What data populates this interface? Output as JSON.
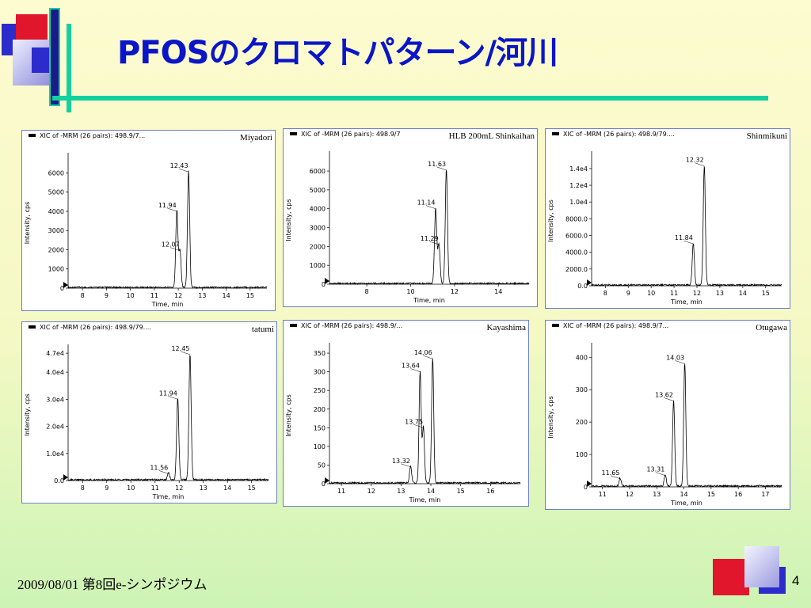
{
  "slide": {
    "title": "PFOSのクロマトパターン/河川",
    "footer": "2009/08/01 第8回e-シンポジウム",
    "page_number": "4",
    "colors": {
      "title": "#0a16c8",
      "accent_rule": "#13d0a0",
      "deco_red": "#e1152b",
      "deco_blue": "#2c2ccc",
      "panel_border": "#6b7fc8"
    }
  },
  "chart_data": [
    {
      "type": "line",
      "header": "XIC of -MRM (26 pairs): 498.9/7...",
      "site": "Miyadori",
      "xlabel": "Time, min",
      "ylabel": "Intensity, cps",
      "xlim": [
        7.4,
        15.7
      ],
      "ylim": [
        0,
        6800
      ],
      "xticks": [
        8,
        9,
        10,
        11,
        12,
        13,
        14,
        15
      ],
      "yticks": [
        0,
        1000,
        2000,
        3000,
        4000,
        5000,
        6000
      ],
      "ytick_labels": [
        "0",
        "1000",
        "2000",
        "3000",
        "4000",
        "5000",
        "6000"
      ],
      "peaks": [
        {
          "t": 11.94,
          "h": 4000,
          "label": "11.94"
        },
        {
          "t": 12.07,
          "h": 1950,
          "label": "12.07"
        },
        {
          "t": 12.43,
          "h": 6050,
          "label": "12.43"
        }
      ]
    },
    {
      "type": "line",
      "header": "XIC of -MRM (26 pairs): 498.9/7",
      "site": "HLB 200mL Shinkaihan",
      "xlabel": "Time, min",
      "ylabel": "Intensity, cps",
      "xlim": [
        6.3,
        15.4
      ],
      "ylim": [
        0,
        6800
      ],
      "xticks": [
        8,
        10,
        12,
        14
      ],
      "yticks": [
        0,
        1000,
        2000,
        3000,
        4000,
        5000,
        6000
      ],
      "ytick_labels": [
        "0",
        "1000",
        "2000",
        "3000",
        "4000",
        "5000",
        "6000"
      ],
      "peaks": [
        {
          "t": 11.14,
          "h": 4000,
          "label": "11.14"
        },
        {
          "t": 11.29,
          "h": 2100,
          "label": "11.29"
        },
        {
          "t": 11.63,
          "h": 6050,
          "label": "11.63"
        }
      ]
    },
    {
      "type": "line",
      "header": "XIC of -MRM (26 pairs): 498.9/79....",
      "site": "Shinmikuni",
      "xlabel": "Time, min",
      "ylabel": "Intensity, cps",
      "xlim": [
        7.4,
        15.7
      ],
      "ylim": [
        0,
        15500
      ],
      "xticks": [
        8,
        9,
        10,
        11,
        12,
        13,
        14,
        15
      ],
      "yticks": [
        0,
        2000,
        4000,
        6000,
        8000,
        10000,
        12000,
        14000
      ],
      "ytick_labels": [
        "0.0",
        "2000.0",
        "4000.0",
        "6000.0",
        "8000.0",
        "1.0e4",
        "1.2e4",
        "1.4e4"
      ],
      "peaks": [
        {
          "t": 11.84,
          "h": 5000,
          "label": "11.84"
        },
        {
          "t": 12.32,
          "h": 14300,
          "label": "12.32"
        }
      ]
    },
    {
      "type": "line",
      "header": "XIC of -MRM (26 pairs): 498.9/79....",
      "site": "tatumi",
      "xlabel": "Time, min",
      "ylabel": "Intensity, cps",
      "xlim": [
        7.4,
        15.7
      ],
      "ylim": [
        0,
        48500
      ],
      "xticks": [
        8,
        9,
        10,
        11,
        12,
        13,
        14,
        15
      ],
      "yticks": [
        0,
        10000,
        20000,
        30000,
        40000,
        47000
      ],
      "ytick_labels": [
        "0.0",
        "1.0e4",
        "2.0e4",
        "3.0e4",
        "4.0e4",
        "4.7e4"
      ],
      "peaks": [
        {
          "t": 11.56,
          "h": 2500,
          "label": "11.56"
        },
        {
          "t": 11.94,
          "h": 30000,
          "label": "11.94"
        },
        {
          "t": 12.45,
          "h": 46500,
          "label": "12.45"
        }
      ]
    },
    {
      "type": "line",
      "header": "XIC of -MRM (26 pairs): 498.9/...",
      "site": "Kayashima",
      "xlabel": "Time, min",
      "ylabel": "Intensity, cps",
      "xlim": [
        10.6,
        17.0
      ],
      "ylim": [
        0,
        365
      ],
      "xticks": [
        11,
        12,
        13,
        14,
        15,
        16
      ],
      "yticks": [
        0,
        50,
        100,
        150,
        200,
        250,
        300,
        350
      ],
      "ytick_labels": [
        "0",
        "50",
        "100",
        "150",
        "200",
        "250",
        "300",
        "350"
      ],
      "peaks": [
        {
          "t": 13.32,
          "h": 45,
          "label": "13.32"
        },
        {
          "t": 13.64,
          "h": 300,
          "label": "13.64"
        },
        {
          "t": 13.75,
          "h": 150,
          "label": "13.75"
        },
        {
          "t": 14.06,
          "h": 335,
          "label": "14.06"
        }
      ]
    },
    {
      "type": "line",
      "header": "XIC of -MRM (26 pairs): 498.9/7...",
      "site": "Otugawa",
      "xlabel": "Time, min",
      "ylabel": "Intensity, cps",
      "xlim": [
        10.6,
        17.6
      ],
      "ylim": [
        0,
        430
      ],
      "xticks": [
        11,
        12,
        13,
        14,
        15,
        16,
        17
      ],
      "yticks": [
        0,
        100,
        200,
        300,
        400
      ],
      "ytick_labels": [
        "0",
        "100",
        "200",
        "300",
        "400"
      ],
      "peaks": [
        {
          "t": 11.65,
          "h": 25,
          "label": "11.65"
        },
        {
          "t": 13.31,
          "h": 35,
          "label": "13.31"
        },
        {
          "t": 13.62,
          "h": 265,
          "label": "13.62"
        },
        {
          "t": 14.03,
          "h": 380,
          "label": "14.03"
        }
      ]
    }
  ]
}
